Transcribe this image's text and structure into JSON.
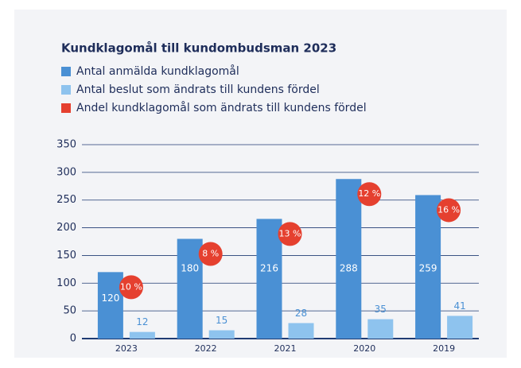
{
  "chart_data": {
    "type": "bar",
    "title": "Kundklagomål till kundombudsman 2023",
    "categories": [
      "2023",
      "2022",
      "2021",
      "2020",
      "2019"
    ],
    "series": [
      {
        "name": "Antal anmälda kundklagomål",
        "color": "#4a90d4",
        "values": [
          120,
          180,
          216,
          288,
          259
        ]
      },
      {
        "name": "Antal beslut som ändrats till kundens fördel",
        "color": "#8ec3ee",
        "values": [
          12,
          15,
          28,
          35,
          41
        ]
      },
      {
        "name": "Andel kundklagomål som ändrats till kundens fördel",
        "color": "#e5402f",
        "values": [
          10,
          8,
          13,
          12,
          16
        ],
        "value_labels": [
          "10 %",
          "8 %",
          "13 %",
          "12 %",
          "16 %"
        ]
      }
    ],
    "ylim": [
      0,
      350
    ],
    "yticks": [
      0,
      50,
      100,
      150,
      200,
      250,
      300,
      350
    ],
    "grid": true
  }
}
